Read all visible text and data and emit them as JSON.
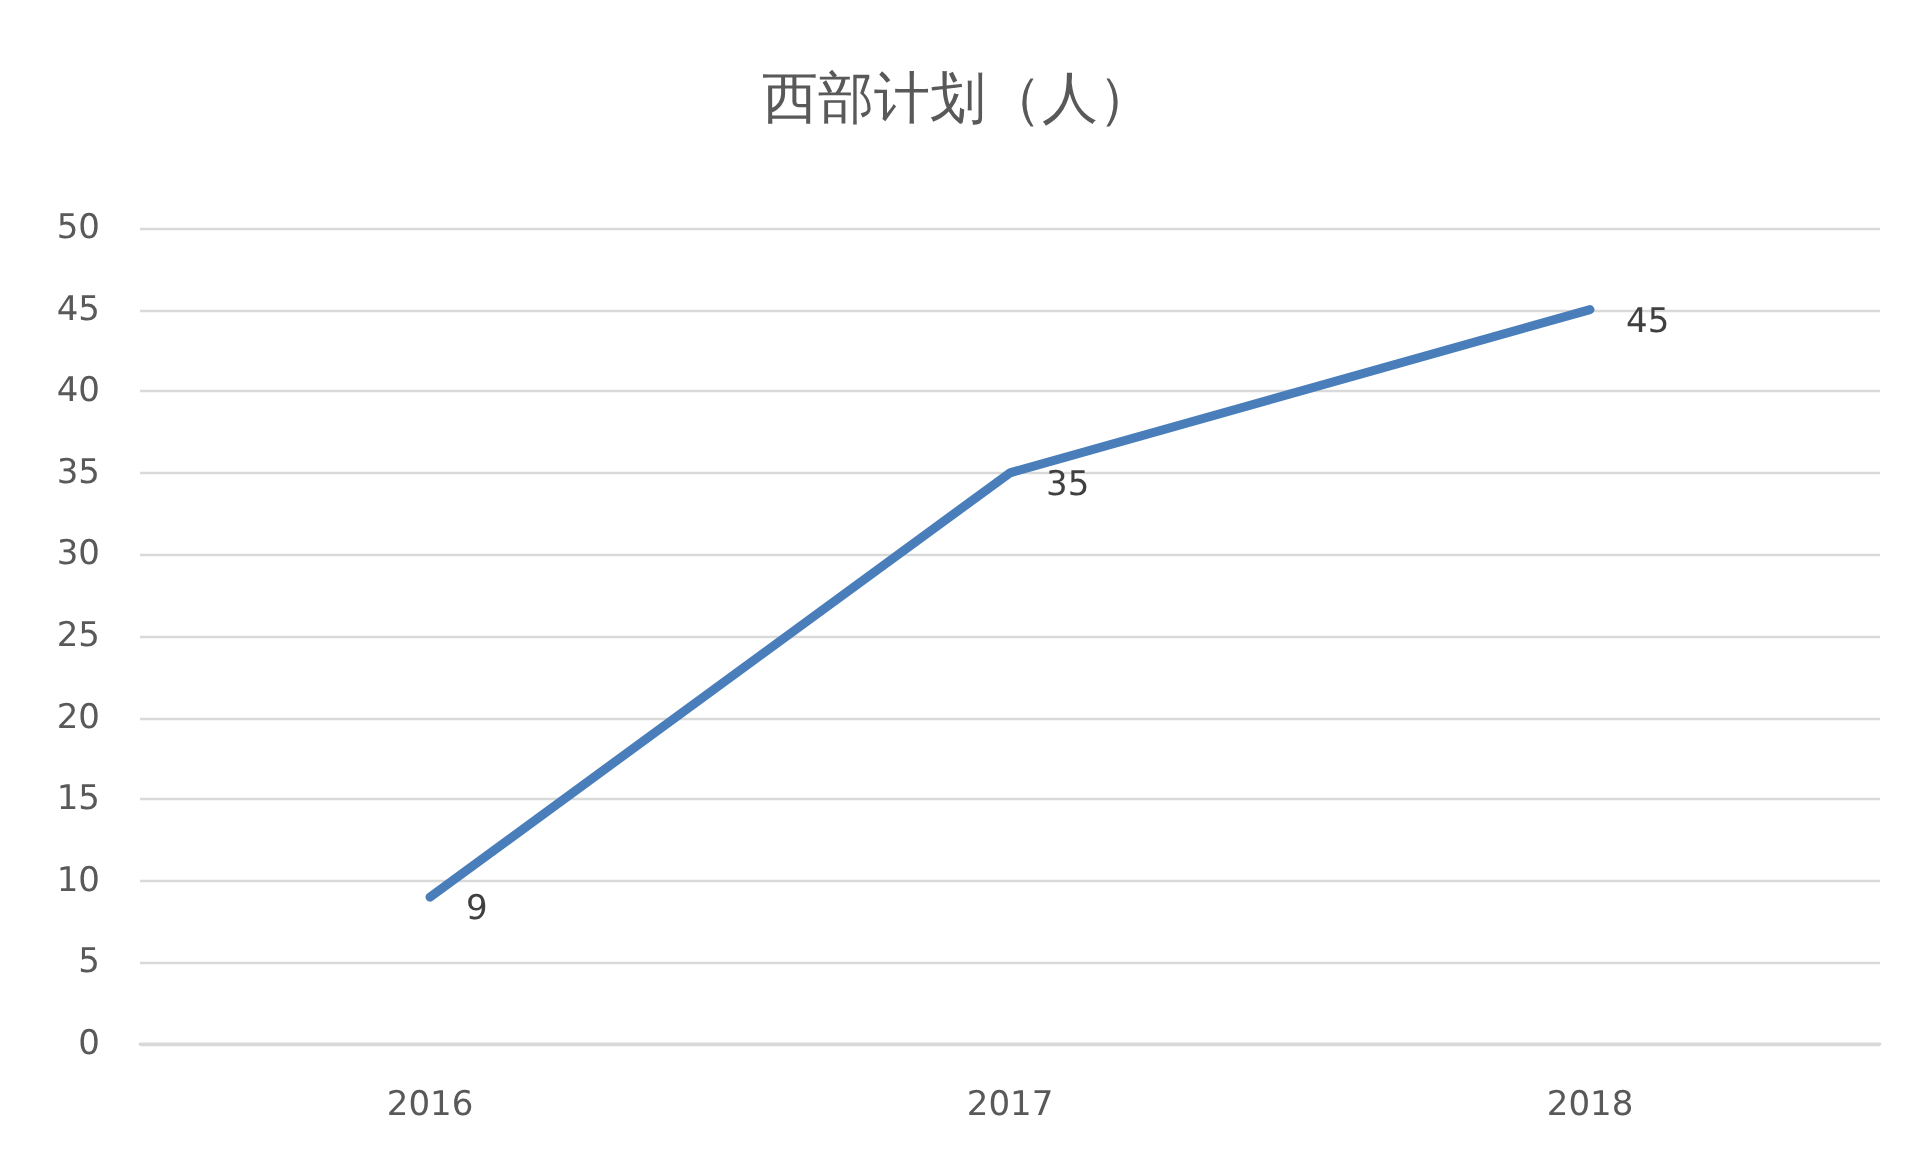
{
  "chart_data": {
    "type": "line",
    "title": "西部计划（人）",
    "categories": [
      "2016",
      "2017",
      "2018"
    ],
    "series": [
      {
        "color": "#4a7ebb",
        "values": [
          9,
          35,
          45
        ]
      }
    ],
    "ylim": [
      0,
      50
    ],
    "yticks": [
      0,
      5,
      10,
      15,
      20,
      25,
      30,
      35,
      40,
      45,
      50
    ],
    "grid": "y",
    "marker": "none",
    "line_style": "solid",
    "data_labels": true
  }
}
